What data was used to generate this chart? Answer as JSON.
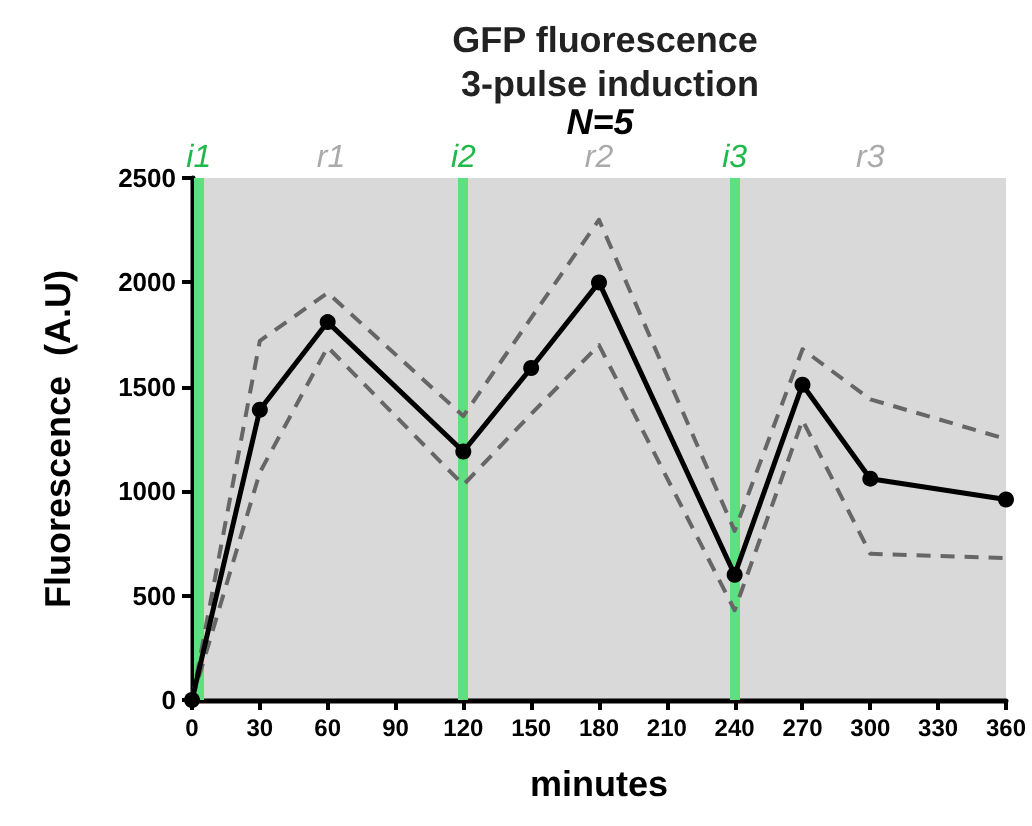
{
  "chart_data": {
    "type": "line",
    "title": "GFP fluorescence 3-pulse induction",
    "xlabel": "minutes",
    "ylabel": "Fluorescence  (A.U)",
    "x": [
      0,
      30,
      60,
      120,
      150,
      180,
      240,
      270,
      300,
      360
    ],
    "series": [
      {
        "color": "#666666",
        "line_style": "dashed",
        "marker": "none",
        "values": [
          0,
          1090,
          1690,
          1030,
          1370,
          1700,
          430,
          1340,
          700,
          680
        ]
      },
      {
        "color": "#666666",
        "line_style": "dashed",
        "marker": "none",
        "values": [
          0,
          1720,
          1950,
          1360,
          1830,
          2300,
          810,
          1680,
          1440,
          1250
        ]
      },
      {
        "color": "#000000",
        "values": [
          0,
          1390,
          1810,
          1190,
          1590,
          2000,
          600,
          1510,
          1060,
          960
        ]
      }
    ],
    "xlim": [
      0,
      360
    ],
    "xticks": [
      0,
      30,
      60,
      90,
      120,
      150,
      180,
      210,
      240,
      270,
      300,
      330,
      360
    ],
    "ylim": [
      0,
      2500
    ],
    "yticks": [
      0,
      500,
      1000,
      1500,
      2000,
      2500
    ],
    "ref_lines": [
      {
        "axis": "x",
        "value": 3,
        "label": "i1",
        "color": "#5fe07f"
      },
      {
        "axis": "x",
        "value": 120,
        "label": "i2",
        "color": "#5fe07f"
      },
      {
        "axis": "x",
        "value": 240,
        "label": "i3",
        "color": "#5fe07f"
      }
    ],
    "annotations": [
      "N=5",
      "r1",
      "r2",
      "r3"
    ],
    "grid": false,
    "marker": "circle",
    "line_style": "solid"
  }
}
